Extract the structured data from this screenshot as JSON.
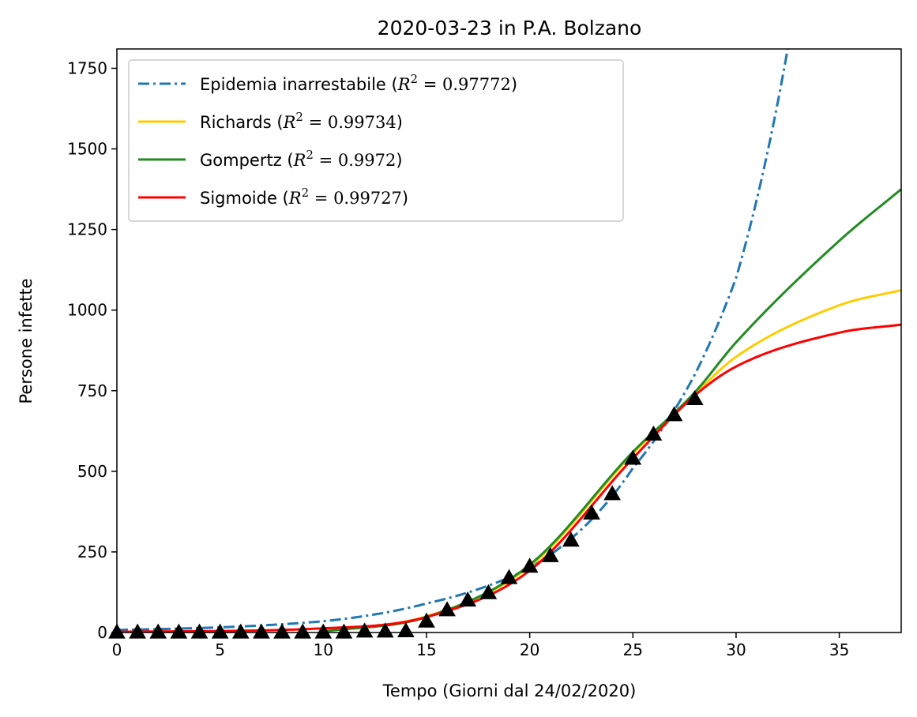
{
  "chart_data": {
    "type": "line",
    "title": "2020-03-23 in P.A. Bolzano",
    "xlabel": "Tempo (Giorni dal 24/02/2020)",
    "ylabel": "Persone infette",
    "xlim": [
      0,
      38
    ],
    "ylim": [
      0,
      1810
    ],
    "x_ticks": [
      0,
      5,
      10,
      15,
      20,
      25,
      30,
      35
    ],
    "y_ticks": [
      0,
      250,
      500,
      750,
      1000,
      1250,
      1500,
      1750
    ],
    "grid": false,
    "legend_position": "upper-left",
    "series": [
      {
        "name": "Epidemia inarrestabile",
        "r2": "0.97772",
        "color": "#1f77b4",
        "style": "dashdot",
        "model": "exponential",
        "x": [
          0,
          5,
          10,
          15,
          20,
          25,
          28,
          30,
          32.5
        ],
        "y": [
          8,
          16,
          35,
          90,
          200,
          510,
          800,
          1100,
          1810
        ]
      },
      {
        "name": "Richards",
        "r2": "0.99734",
        "color": "#ffcc00",
        "style": "solid",
        "model": "richards",
        "x": [
          10,
          15,
          20,
          25,
          28,
          30,
          35,
          38
        ],
        "y": [
          5,
          50,
          205,
          555,
          740,
          855,
          1015,
          1062
        ]
      },
      {
        "name": "Gompertz",
        "r2": "0.9972",
        "color": "#228b22",
        "style": "solid",
        "model": "gompertz",
        "x": [
          10,
          15,
          20,
          25,
          28,
          30,
          35,
          38
        ],
        "y": [
          3,
          48,
          210,
          560,
          745,
          900,
          1215,
          1375
        ]
      },
      {
        "name": "Sigmoide",
        "r2": "0.99727",
        "color": "#ff0000",
        "style": "solid",
        "model": "logistic",
        "x": [
          0,
          10,
          15,
          20,
          25,
          28,
          30,
          35,
          38
        ],
        "y": [
          2,
          13,
          48,
          192,
          540,
          735,
          825,
          930,
          955
        ]
      }
    ],
    "observed": {
      "marker": "triangle",
      "color": "#000000",
      "x": [
        0,
        1,
        2,
        3,
        4,
        5,
        6,
        7,
        8,
        9,
        10,
        11,
        12,
        13,
        14,
        15,
        16,
        17,
        18,
        19,
        20,
        21,
        22,
        23,
        24,
        25,
        26,
        27,
        28
      ],
      "y": [
        1,
        1,
        1,
        1,
        1,
        1,
        1,
        1,
        1,
        1,
        1,
        1,
        4,
        4,
        5,
        35,
        70,
        100,
        123,
        170,
        205,
        238,
        286,
        370,
        430,
        540,
        615,
        675,
        725
      ]
    }
  }
}
